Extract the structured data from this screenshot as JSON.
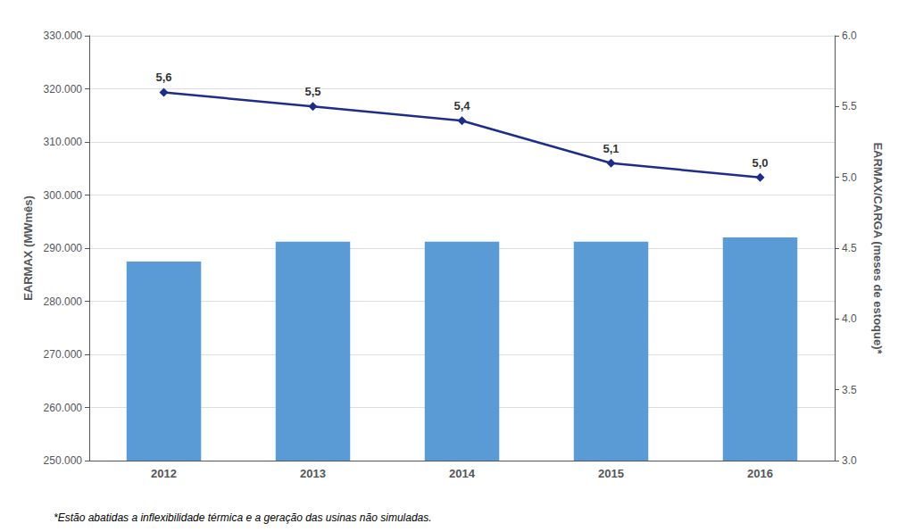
{
  "chart_data": {
    "type": "bar",
    "categories": [
      "2012",
      "2013",
      "2014",
      "2015",
      "2016"
    ],
    "series": [
      {
        "type": "bar",
        "color": "#5B9BD5",
        "values": [
          287500,
          291200,
          291200,
          291200,
          292000
        ]
      },
      {
        "type": "line",
        "axis": "y2",
        "color": "#1F2D8A",
        "marker": "diamond",
        "values": [
          5.6,
          5.5,
          5.4,
          5.1,
          5.0
        ],
        "value_labels": [
          "5,6",
          "5,5",
          "5,4",
          "5,1",
          "5,0"
        ],
        "data_labels": true
      }
    ],
    "ylabel": "EARMAX (MWmês)",
    "y2label": "EARMAX/CARGA (meses de estoque)*",
    "ylim": [
      250000,
      330000
    ],
    "yticks": [
      {
        "value": 250000,
        "label": "250.000"
      },
      {
        "value": 260000,
        "label": "260.000"
      },
      {
        "value": 270000,
        "label": "270.000"
      },
      {
        "value": 280000,
        "label": "280.000"
      },
      {
        "value": 290000,
        "label": "290.000"
      },
      {
        "value": 300000,
        "label": "300.000"
      },
      {
        "value": 310000,
        "label": "310.000"
      },
      {
        "value": 320000,
        "label": "320.000"
      },
      {
        "value": 330000,
        "label": "330.000"
      }
    ],
    "y2lim": [
      3.0,
      6.0
    ],
    "y2ticks": [
      {
        "value": 3,
        "label": "3.0"
      },
      3.5,
      {
        "value": 4,
        "label": "4.0"
      },
      4.5,
      {
        "value": 5,
        "label": "5.0"
      },
      5.5,
      {
        "value": 6,
        "label": "6.0"
      }
    ],
    "grid": true,
    "annotations": [
      "*Estão abatidas a inflexibilidade térmica e a geração das usinas não simuladas."
    ]
  }
}
